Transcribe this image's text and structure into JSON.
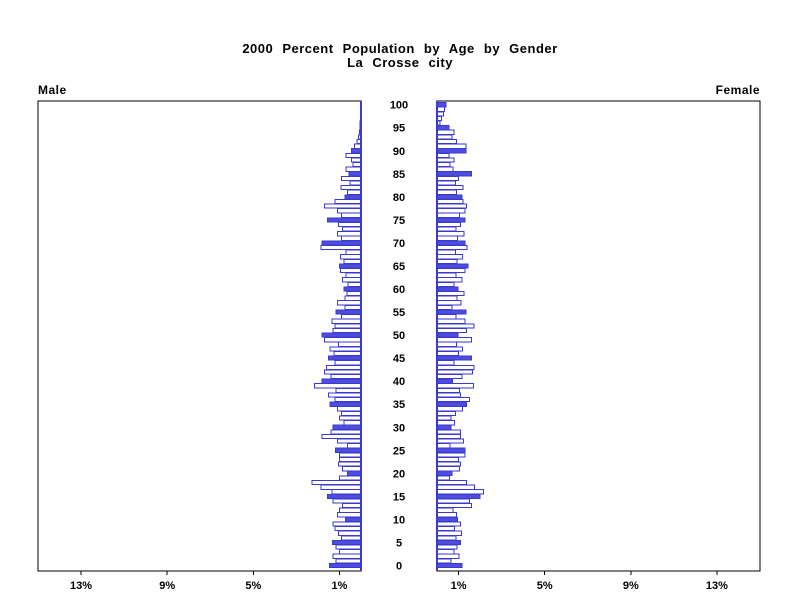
{
  "chart_data": {
    "type": "bar",
    "variant": "population-pyramid",
    "title": "2000 Percent Population by Age by Gender",
    "subtitle": "La Crosse city",
    "left_panel_label": "Male",
    "right_panel_label": "Female",
    "age_tick_labels": [
      0,
      5,
      10,
      15,
      20,
      25,
      30,
      35,
      40,
      45,
      50,
      55,
      60,
      65,
      70,
      75,
      80,
      85,
      90,
      95,
      100
    ],
    "pct_tick_values": [
      1,
      5,
      9,
      13
    ],
    "pct_tick_suffix": "%",
    "xlim_pct": [
      0,
      15
    ],
    "age_range": [
      0,
      100
    ],
    "fill_rule": "bars for ages divisible by 5 are solid blue; other ages are white with blue outline",
    "legend_position": "none",
    "grid": false,
    "series": [
      {
        "name": "Male",
        "values": [
          1.47,
          1.15,
          1.3,
          1.0,
          1.15,
          1.32,
          0.9,
          1.05,
          1.2,
          1.3,
          0.73,
          1.1,
          1.0,
          0.85,
          1.3,
          1.55,
          1.35,
          1.86,
          2.28,
          1.0,
          0.62,
          0.85,
          1.05,
          1.0,
          1.0,
          1.19,
          0.62,
          1.08,
          1.81,
          1.4,
          1.3,
          0.8,
          1.0,
          0.9,
          1.1,
          1.45,
          1.2,
          1.5,
          1.15,
          2.17,
          1.81,
          1.4,
          1.7,
          1.6,
          1.2,
          1.5,
          1.25,
          1.45,
          1.05,
          1.7,
          1.81,
          1.3,
          1.2,
          1.35,
          0.9,
          1.15,
          0.75,
          1.1,
          0.75,
          0.65,
          0.8,
          0.6,
          0.85,
          0.7,
          0.95,
          1.0,
          0.8,
          0.95,
          0.7,
          1.85,
          1.8,
          0.9,
          1.1,
          0.85,
          1.05,
          1.55,
          0.9,
          1.1,
          1.7,
          1.2,
          0.74,
          0.62,
          0.93,
          0.5,
          0.9,
          0.55,
          0.7,
          0.38,
          0.45,
          0.7,
          0.43,
          0.3,
          0.18,
          0.12,
          0.08,
          0.05,
          0.04,
          0.03,
          0.02,
          0.02,
          0.02
        ]
      },
      {
        "name": "Female",
        "values": [
          1.17,
          0.65,
          1.03,
          0.79,
          0.93,
          1.1,
          0.89,
          1.13,
          0.82,
          1.1,
          0.96,
          0.9,
          0.75,
          1.61,
          1.5,
          2.0,
          2.16,
          1.74,
          1.38,
          0.57,
          0.7,
          1.05,
          1.1,
          0.99,
          1.3,
          1.3,
          0.6,
          1.24,
          1.1,
          1.1,
          0.64,
          0.82,
          0.65,
          0.85,
          1.18,
          1.38,
          1.5,
          1.1,
          1.04,
          1.69,
          0.73,
          1.15,
          1.66,
          1.72,
          0.78,
          1.61,
          0.99,
          1.19,
          0.91,
          1.61,
          0.98,
          1.38,
          1.72,
          1.3,
          0.88,
          1.35,
          0.7,
          1.12,
          0.92,
          1.25,
          0.97,
          0.78,
          1.15,
          0.88,
          1.3,
          1.45,
          0.92,
          1.18,
          0.85,
          1.4,
          1.3,
          0.95,
          1.25,
          0.88,
          1.1,
          1.3,
          1.05,
          1.3,
          1.38,
          1.2,
          1.15,
          0.9,
          1.2,
          0.85,
          1.0,
          1.61,
          0.75,
          0.6,
          0.78,
          0.55,
          1.35,
          1.35,
          0.9,
          0.69,
          0.78,
          0.55,
          0.15,
          0.2,
          0.3,
          0.35,
          0.42
        ]
      }
    ],
    "colors": {
      "bar_outline": "#3A3ACE",
      "bar_fill_solid": "#4D4DE0",
      "bar_fill_open": "#FFFFFF",
      "axis": "#000000",
      "background": "#FFFFFF",
      "text": "#000000"
    }
  }
}
